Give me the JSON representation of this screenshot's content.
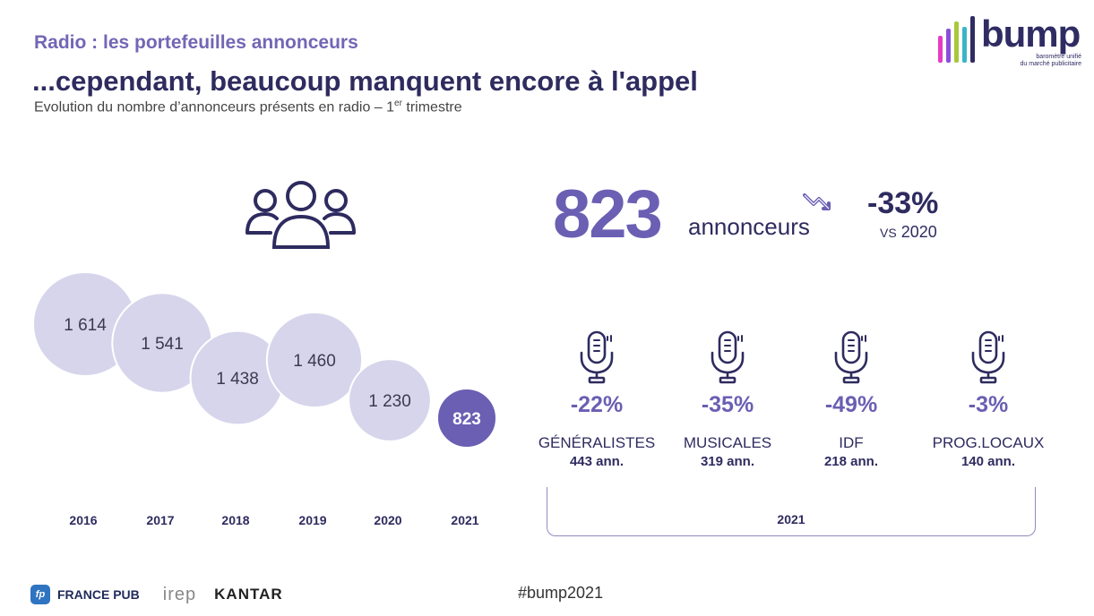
{
  "header": {
    "kicker": "Radio : les portefeuilles annonceurs",
    "headline": "...cependant, beaucoup manquent encore à l'appel",
    "subtitle_pre": "Evolution du nombre d’annonceurs présents en radio – 1",
    "subtitle_sup": "er",
    "subtitle_post": " trimestre"
  },
  "logo": {
    "word": "bump",
    "tagline_1": "baromètre unifié",
    "tagline_2": "du marché publicitaire",
    "bar_colors": [
      "#e33dc3",
      "#8a4fd8",
      "#a7c83a",
      "#3ab5c8",
      "#2f2c63"
    ]
  },
  "colors": {
    "bubble": "#d7d5eb",
    "highlight": "#6a5fb3",
    "text_dark": "#2e2b5f"
  },
  "icons": [
    "people-icon",
    "trend-down-icon",
    "microphone-icon"
  ],
  "chart_data": {
    "type": "bubble",
    "categories": [
      "2016",
      "2017",
      "2018",
      "2019",
      "2020",
      "2021"
    ],
    "values": [
      1614,
      1541,
      1438,
      1460,
      1230,
      823
    ],
    "labels": [
      "1 614",
      "1 541",
      "1 438",
      "1 460",
      "1 230",
      "823"
    ],
    "highlight_index": 5
  },
  "kpi": {
    "value": "823",
    "unit": "annonceurs",
    "change": "-33%",
    "vs_prefix": "VS",
    "vs_year": "2020"
  },
  "segments": [
    {
      "pct": "-22%",
      "name": "GÉNÉRALISTES",
      "count": "443",
      "unit": "ann."
    },
    {
      "pct": "-35%",
      "name": "MUSICALES",
      "count": "319",
      "unit": "ann."
    },
    {
      "pct": "-49%",
      "name": "IDF",
      "count": "218",
      "unit": "ann."
    },
    {
      "pct": "-3%",
      "name": "PROG.LOCAUX",
      "count": "140",
      "unit": "ann."
    }
  ],
  "segments_year": "2021",
  "footer": {
    "fp_badge": "fp",
    "fp_name": "FRANCE PUB",
    "irep": "irep",
    "kantar": "KANTAR",
    "hashtag": "#bump2021"
  }
}
